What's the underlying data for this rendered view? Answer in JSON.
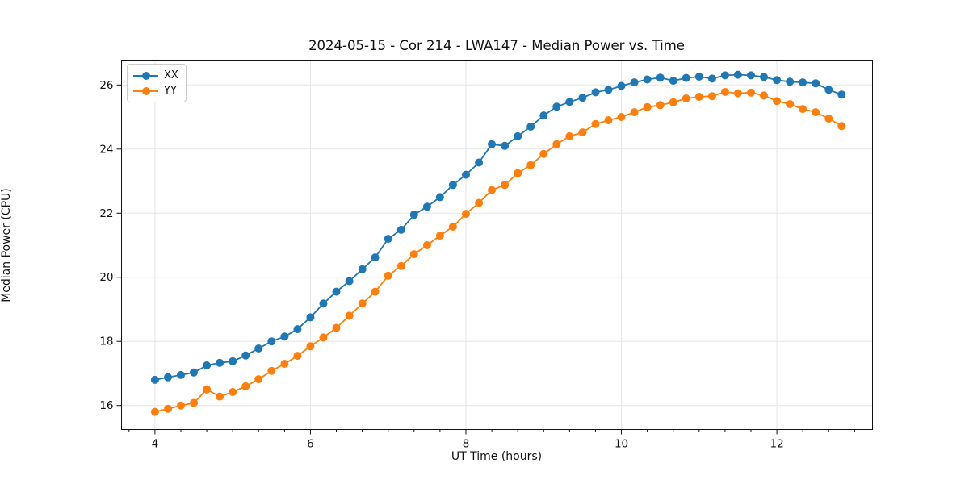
{
  "title": "2024-05-15 - Cor 214 - LWA147 - Median Power vs. Time",
  "legend": {
    "entries": [
      {
        "label": "XX",
        "color": "#1f77b4"
      },
      {
        "label": "YY",
        "color": "#ff7f0e"
      }
    ]
  },
  "chart_data": {
    "type": "line",
    "title": "2024-05-15 - Cor 214 - LWA147 - Median Power vs. Time",
    "xlabel": "UT Time (hours)",
    "ylabel": "Median Power (CPU)",
    "xlim": [
      3.57,
      13.23
    ],
    "ylim": [
      15.25,
      26.75
    ],
    "xticks": [
      4,
      6,
      8,
      10,
      12
    ],
    "yticks": [
      16,
      18,
      20,
      22,
      24,
      26
    ],
    "x_minor_step": 0.33333,
    "grid": true,
    "grid_color": "#e6e6e6",
    "legend_position": "upper-left",
    "marker": "circle",
    "x": [
      4.0,
      4.167,
      4.333,
      4.5,
      4.667,
      4.833,
      5.0,
      5.167,
      5.333,
      5.5,
      5.667,
      5.833,
      6.0,
      6.167,
      6.333,
      6.5,
      6.667,
      6.833,
      7.0,
      7.167,
      7.333,
      7.5,
      7.667,
      7.833,
      8.0,
      8.167,
      8.333,
      8.5,
      8.667,
      8.833,
      9.0,
      9.167,
      9.333,
      9.5,
      9.667,
      9.833,
      10.0,
      10.167,
      10.333,
      10.5,
      10.667,
      10.833,
      11.0,
      11.167,
      11.333,
      11.5,
      11.667,
      11.833,
      12.0,
      12.167,
      12.333,
      12.5,
      12.667,
      12.833
    ],
    "series": [
      {
        "name": "XX",
        "color": "#1f77b4",
        "values": [
          16.8,
          16.88,
          16.95,
          17.03,
          17.25,
          17.33,
          17.38,
          17.56,
          17.78,
          18.0,
          18.15,
          18.38,
          18.75,
          19.18,
          19.55,
          19.88,
          20.25,
          20.62,
          21.2,
          21.48,
          21.95,
          22.2,
          22.5,
          22.88,
          23.2,
          23.58,
          24.15,
          24.1,
          24.4,
          24.7,
          25.05,
          25.32,
          25.47,
          25.6,
          25.77,
          25.85,
          25.97,
          26.08,
          26.17,
          26.23,
          26.13,
          26.22,
          26.26,
          26.2,
          26.3,
          26.32,
          26.3,
          26.25,
          26.15,
          26.1,
          26.08,
          26.05,
          25.85,
          25.7
        ]
      },
      {
        "name": "YY",
        "color": "#ff7f0e",
        "values": [
          15.8,
          15.9,
          16.0,
          16.08,
          16.5,
          16.28,
          16.42,
          16.6,
          16.82,
          17.08,
          17.3,
          17.55,
          17.85,
          18.12,
          18.42,
          18.8,
          19.18,
          19.55,
          20.05,
          20.35,
          20.72,
          21.0,
          21.3,
          21.58,
          21.98,
          22.32,
          22.72,
          22.88,
          23.25,
          23.5,
          23.85,
          24.15,
          24.4,
          24.52,
          24.78,
          24.9,
          25.0,
          25.15,
          25.31,
          25.37,
          25.46,
          25.58,
          25.63,
          25.65,
          25.78,
          25.74,
          25.76,
          25.67,
          25.5,
          25.4,
          25.25,
          25.15,
          24.95,
          24.72
        ]
      }
    ]
  }
}
